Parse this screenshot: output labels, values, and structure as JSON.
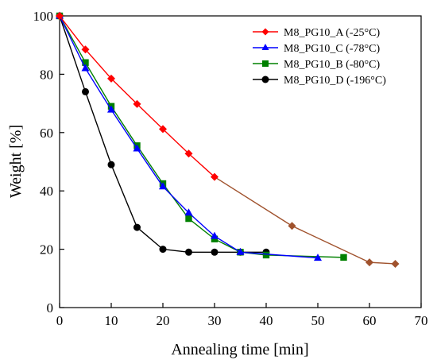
{
  "chart_data": {
    "type": "line",
    "xlabel": "Annealing time [min]",
    "ylabel": "Weight [%]",
    "xlim": [
      0,
      70
    ],
    "ylim": [
      0,
      100
    ],
    "x_ticks": [
      "0",
      "10",
      "20",
      "30",
      "40",
      "50",
      "60",
      "70"
    ],
    "y_ticks": [
      "0",
      "20",
      "40",
      "60",
      "80",
      "100"
    ],
    "grid": false,
    "legend_position": "top-right",
    "series": [
      {
        "name": "M8_PG10_A (-25°C)",
        "color": "#ff0000",
        "segment_color": "#a0522d",
        "marker": "diamond",
        "x": [
          0,
          5,
          10,
          15,
          20,
          25,
          30,
          45,
          60,
          65
        ],
        "y": [
          100,
          88.5,
          78.5,
          69.8,
          61.2,
          52.8,
          44.8,
          28,
          15.5,
          15
        ]
      },
      {
        "name": "M8_PG10_C (-78°C)",
        "color": "#0000ff",
        "marker": "triangle",
        "x": [
          0,
          5,
          10,
          15,
          20,
          25,
          30,
          35,
          50
        ],
        "y": [
          100,
          82,
          67.8,
          54.5,
          41.5,
          32.5,
          24.5,
          19,
          17
        ]
      },
      {
        "name": "M8_PG10_B (-80°C)",
        "color": "#008000",
        "marker": "square",
        "x": [
          0,
          5,
          10,
          15,
          20,
          25,
          30,
          35,
          40,
          55
        ],
        "y": [
          100,
          84,
          69,
          55.5,
          42.5,
          30.5,
          23.5,
          19,
          18,
          17.2
        ]
      },
      {
        "name": "M8_PG10_D (-196°C)",
        "color": "#000000",
        "marker": "circle",
        "x": [
          0,
          5,
          10,
          15,
          20,
          25,
          30,
          35,
          40
        ],
        "y": [
          100,
          74,
          49,
          27.5,
          20,
          19,
          19,
          19,
          19
        ]
      }
    ]
  }
}
